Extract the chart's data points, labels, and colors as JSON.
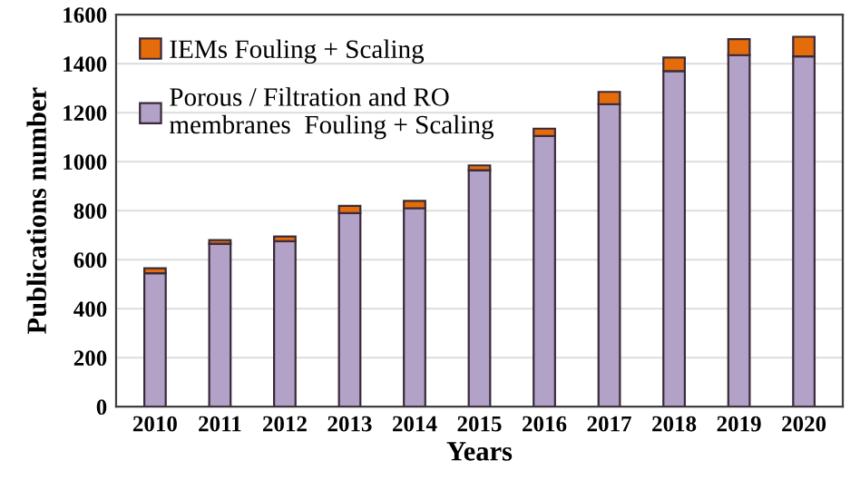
{
  "chart_data": {
    "type": "bar",
    "stacked": true,
    "xlabel": "Years",
    "ylabel": "Publications number",
    "categories": [
      "2010",
      "2011",
      "2012",
      "2013",
      "2014",
      "2015",
      "2016",
      "2017",
      "2018",
      "2019",
      "2020"
    ],
    "series": [
      {
        "name": "Porous / Filtration and RO membranes  Fouling + Scaling",
        "color": "#b3a2c7",
        "values": [
          545,
          665,
          675,
          790,
          810,
          965,
          1105,
          1235,
          1370,
          1435,
          1430
        ]
      },
      {
        "name": "IEMs Fouling + Scaling",
        "color": "#e46c0a",
        "values": [
          20,
          15,
          20,
          30,
          30,
          20,
          30,
          50,
          55,
          65,
          80
        ]
      }
    ],
    "ylim": [
      0,
      1600
    ],
    "yticks": [
      0,
      200,
      400,
      600,
      800,
      1000,
      1200,
      1400,
      1600
    ],
    "grid": "y",
    "legend": "top left"
  }
}
